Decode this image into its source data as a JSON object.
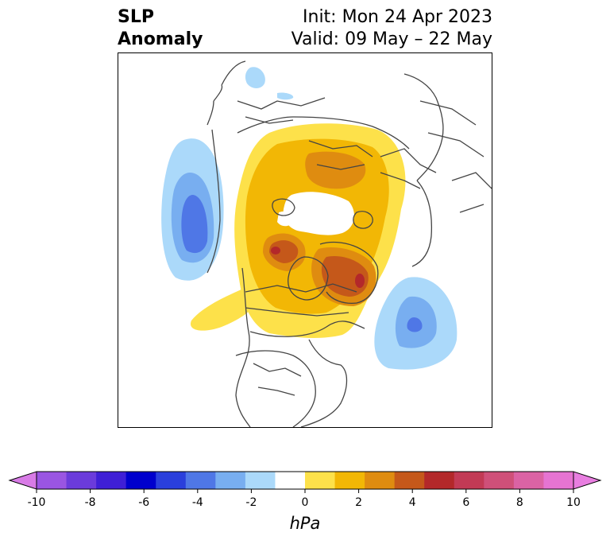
{
  "title": {
    "variable_line1": "SLP",
    "variable_line2": "Anomaly",
    "init": "Init: Mon 24 Apr 2023",
    "valid": "Valid: 09 May – 22 May"
  },
  "colorbar": {
    "unit": "hPa",
    "tick_labels": [
      "-10",
      "-8",
      "-6",
      "-4",
      "-2",
      "0",
      "2",
      "4",
      "6",
      "8",
      "10"
    ],
    "levels": [
      -10,
      -9,
      -8,
      -7,
      -6,
      -5,
      -4,
      -3,
      -2,
      -1,
      1,
      2,
      3,
      4,
      5,
      6,
      7,
      8,
      9,
      10
    ],
    "colors": [
      "#d87be6",
      "#9a55e2",
      "#6b3bdb",
      "#3f1fd6",
      "#0000cd",
      "#2a3fdc",
      "#4f77e6",
      "#78aef0",
      "#abd9fa",
      "#ffffff",
      "#fde14a",
      "#f2b705",
      "#df8c10",
      "#c5581a",
      "#b3282a",
      "#c23a55",
      "#cf5079",
      "#db63a4",
      "#e674d2",
      "#e87ee0"
    ],
    "extend_low_color": "#d87be6",
    "extend_high_color": "#e87ee0"
  }
}
